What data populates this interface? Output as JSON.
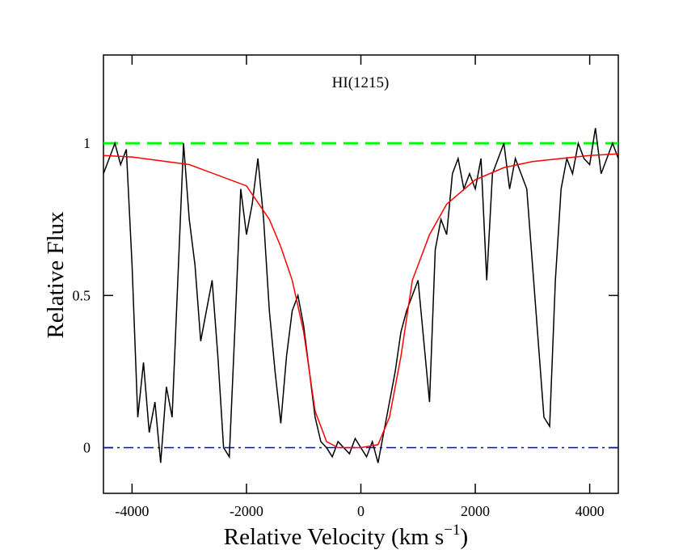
{
  "chart_data": {
    "type": "line",
    "annotation": "HI(1215)",
    "xlabel": [
      "Relative Velocity (km s",
      "−1",
      ")"
    ],
    "ylabel": "Relative Flux",
    "xlim": [
      -4500,
      4500
    ],
    "ylim": [
      -0.15,
      1.29
    ],
    "xticks": [
      -4000,
      -2000,
      0,
      2000,
      4000
    ],
    "yticks": [
      0,
      0.5,
      1
    ],
    "hlines": [
      {
        "y": 1,
        "color": "#00ff00",
        "style": "dashed"
      },
      {
        "y": 0,
        "color": "#0000ff",
        "style": "dashdot"
      }
    ],
    "series": [
      {
        "color": "#000000",
        "x": [
          -4500,
          -4400,
          -4300,
          -4200,
          -4100,
          -4000,
          -3900,
          -3800,
          -3700,
          -3600,
          -3500,
          -3400,
          -3300,
          -3200,
          -3100,
          -3000,
          -2900,
          -2800,
          -2700,
          -2600,
          -2500,
          -2400,
          -2300,
          -2200,
          -2100,
          -2000,
          -1900,
          -1800,
          -1700,
          -1600,
          -1500,
          -1400,
          -1300,
          -1200,
          -1100,
          -1000,
          -900,
          -800,
          -700,
          -600,
          -500,
          -400,
          -300,
          -200,
          -100,
          0,
          100,
          200,
          300,
          400,
          500,
          600,
          700,
          800,
          900,
          1000,
          1100,
          1200,
          1300,
          1400,
          1500,
          1600,
          1700,
          1800,
          1900,
          2000,
          2100,
          2200,
          2300,
          2400,
          2500,
          2600,
          2700,
          2800,
          2900,
          3000,
          3100,
          3200,
          3300,
          3400,
          3500,
          3600,
          3700,
          3800,
          3900,
          4000,
          4100,
          4200,
          4300,
          4400,
          4500
        ],
        "values": [
          0.9,
          0.95,
          1.0,
          0.93,
          0.98,
          0.6,
          0.1,
          0.28,
          0.05,
          0.15,
          -0.05,
          0.2,
          0.1,
          0.55,
          1.0,
          0.75,
          0.6,
          0.35,
          0.45,
          0.55,
          0.3,
          0.0,
          -0.03,
          0.4,
          0.85,
          0.7,
          0.8,
          0.95,
          0.75,
          0.45,
          0.25,
          0.08,
          0.3,
          0.45,
          0.5,
          0.4,
          0.25,
          0.1,
          0.02,
          0.0,
          -0.03,
          0.02,
          0.0,
          -0.02,
          0.03,
          0.0,
          -0.03,
          0.02,
          -0.05,
          0.05,
          0.15,
          0.25,
          0.38,
          0.45,
          0.5,
          0.55,
          0.35,
          0.15,
          0.65,
          0.75,
          0.7,
          0.9,
          0.95,
          0.85,
          0.9,
          0.85,
          0.95,
          0.55,
          0.9,
          0.95,
          1.0,
          0.85,
          0.95,
          0.9,
          0.85,
          0.6,
          0.35,
          0.1,
          0.07,
          0.55,
          0.85,
          0.95,
          0.9,
          1.0,
          0.95,
          0.93,
          1.05,
          0.9,
          0.95,
          1.0,
          0.95
        ]
      },
      {
        "color": "#ff0000",
        "x": [
          -4500,
          -4000,
          -3000,
          -2000,
          -1600,
          -1400,
          -1200,
          -1000,
          -800,
          -600,
          -400,
          0,
          300,
          500,
          700,
          900,
          1000,
          1200,
          1500,
          2000,
          2500,
          3000,
          3500,
          4000,
          4500
        ],
        "values": [
          0.96,
          0.955,
          0.93,
          0.86,
          0.75,
          0.66,
          0.55,
          0.38,
          0.12,
          0.02,
          0.0,
          0.0,
          0.01,
          0.1,
          0.3,
          0.55,
          0.6,
          0.7,
          0.8,
          0.88,
          0.92,
          0.94,
          0.95,
          0.96,
          0.965
        ]
      }
    ]
  }
}
